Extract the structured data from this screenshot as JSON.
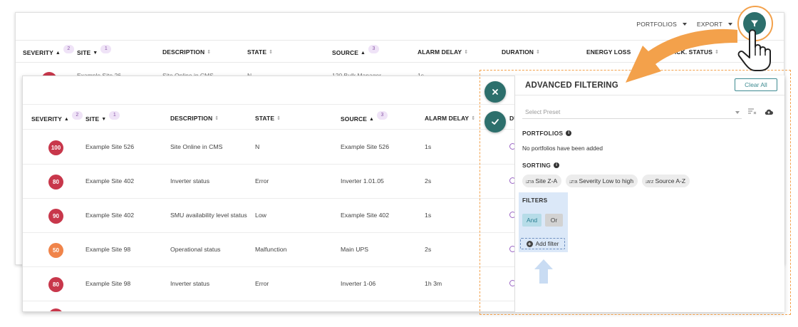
{
  "toolbar": {
    "portfolios_label": "PORTFOLIOS",
    "export_label": "EXPORT"
  },
  "table": {
    "headers": {
      "severity": "SEVERITY",
      "severity_count": "2",
      "site": "SITE",
      "site_count": "1",
      "description": "DESCRIPTION",
      "state": "STATE",
      "source": "SOURCE",
      "source_count": "3",
      "alarm_delay": "ALARM DELAY",
      "duration": "DURATION",
      "energy_loss": "ENERGY LOSS",
      "ack_status": "ACK. STATUS",
      "duration_short": "DU"
    },
    "back_preview_row": {
      "site": "Example Site 26",
      "description": "Site Online in CMS",
      "state": "N",
      "source": "120 Bulk Manager",
      "alarm_delay": "1s"
    },
    "rows": [
      {
        "severity": "100",
        "severity_color": "#c8374b",
        "site": "Example Site 526",
        "description": "Site Online in CMS",
        "state": "N",
        "source": "Example Site 526",
        "alarm_delay": "1s"
      },
      {
        "severity": "80",
        "severity_color": "#c8374b",
        "site": "Example Site 402",
        "description": "Inverter status",
        "state": "Error",
        "source": "Inverter 1.01.05",
        "alarm_delay": "2s"
      },
      {
        "severity": "90",
        "severity_color": "#c8374b",
        "site": "Example Site 402",
        "description": "SMU availability level status",
        "state": "Low",
        "source": "Example Site 402",
        "alarm_delay": "1s"
      },
      {
        "severity": "50",
        "severity_color": "#f0844a",
        "site": "Example Site 98",
        "description": "Operational status",
        "state": "Malfunction",
        "source": "Main UPS",
        "alarm_delay": "2s"
      },
      {
        "severity": "80",
        "severity_color": "#c8374b",
        "site": "Example Site 98",
        "description": "Inverter status",
        "state": "Error",
        "source": "Inverter 1-06",
        "alarm_delay": "1h 3m"
      }
    ]
  },
  "advanced_filtering": {
    "title": "ADVANCED FILTERING",
    "clear_all": "Clear All",
    "preset_placeholder": "Select Preset",
    "portfolios_title": "PORTFOLIOS",
    "portfolios_empty": "No portfolios have been added",
    "sorting_title": "SORTING",
    "sort_chips": [
      {
        "icon": "↓z↑a",
        "label": "Site Z-A"
      },
      {
        "icon": "↓z↑a",
        "label": "Severity Low to high"
      },
      {
        "icon": "↓a↑z",
        "label": "Source A-Z"
      }
    ],
    "filters_title": "FILTERS",
    "and_label": "And",
    "or_label": "Or",
    "add_filter": "Add filter"
  },
  "colors": {
    "accent": "#2d6f6c",
    "highlight": "#f3a14b",
    "badge_purple": "#8b5aa8"
  }
}
